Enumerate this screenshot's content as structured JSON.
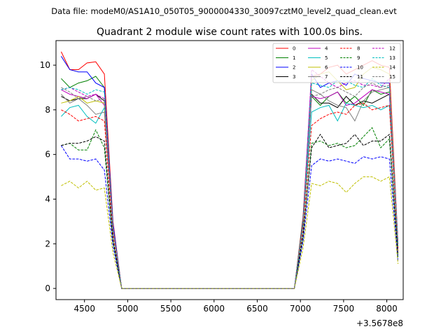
{
  "suptitle": "Data file: modeM0/AS1A10_050T05_9000004330_30097cztM0_level2_quad_clean.evt",
  "chart_data": {
    "type": "line",
    "title": "Quadrant 2 module wise count rates with 100.0s bins.",
    "xlabel": "",
    "ylabel": "",
    "x_offset_label": "+3.5678e8",
    "xlim": [
      4170,
      8190
    ],
    "ylim": [
      -0.5,
      11.1
    ],
    "xticks": [
      4500,
      5000,
      5500,
      6000,
      6500,
      7000,
      7500,
      8000
    ],
    "yticks": [
      0,
      2,
      4,
      6,
      8,
      10
    ],
    "grid": false,
    "legend_position": "top-right",
    "x": [
      4230,
      4330,
      4430,
      4530,
      4630,
      4730,
      4830,
      4930,
      5030,
      5130,
      5230,
      5330,
      5430,
      5530,
      5630,
      5730,
      5830,
      5930,
      6030,
      6130,
      6230,
      6330,
      6430,
      6530,
      6630,
      6730,
      6830,
      6930,
      7030,
      7130,
      7230,
      7330,
      7430,
      7530,
      7630,
      7730,
      7830,
      7930,
      8030,
      8130
    ],
    "series": [
      {
        "name": "0",
        "color": "#ff0000",
        "dash": "solid",
        "values": [
          10.6,
          9.8,
          9.8,
          10.1,
          10.15,
          9.6,
          3.0,
          0,
          0,
          0,
          0,
          0,
          0,
          0,
          0,
          0,
          0,
          0,
          0,
          0,
          0,
          0,
          0,
          0,
          0,
          0,
          0,
          0,
          3.2,
          9.5,
          9.6,
          9.9,
          10.0,
          9.6,
          9.8,
          10.0,
          10.2,
          10.0,
          9.9,
          2.0
        ]
      },
      {
        "name": "1",
        "color": "#008000",
        "dash": "solid",
        "values": [
          9.4,
          9.0,
          9.2,
          9.3,
          9.5,
          9.0,
          2.8,
          0,
          0,
          0,
          0,
          0,
          0,
          0,
          0,
          0,
          0,
          0,
          0,
          0,
          0,
          0,
          0,
          0,
          0,
          0,
          0,
          0,
          3.1,
          8.6,
          8.2,
          8.6,
          8.8,
          8.3,
          8.6,
          8.2,
          8.9,
          8.7,
          8.8,
          1.9
        ]
      },
      {
        "name": "2",
        "color": "#0000ff",
        "dash": "solid",
        "values": [
          10.4,
          9.8,
          9.7,
          9.7,
          9.2,
          9.0,
          2.9,
          0,
          0,
          0,
          0,
          0,
          0,
          0,
          0,
          0,
          0,
          0,
          0,
          0,
          0,
          0,
          0,
          0,
          0,
          0,
          0,
          0,
          3.0,
          9.6,
          9.0,
          9.2,
          9.3,
          9.1,
          9.6,
          9.4,
          9.3,
          9.2,
          9.2,
          2.0
        ]
      },
      {
        "name": "3",
        "color": "#000000",
        "dash": "solid",
        "values": [
          8.6,
          8.4,
          8.5,
          8.5,
          8.7,
          8.4,
          2.7,
          0,
          0,
          0,
          0,
          0,
          0,
          0,
          0,
          0,
          0,
          0,
          0,
          0,
          0,
          0,
          0,
          0,
          0,
          0,
          0,
          0,
          2.9,
          8.7,
          8.3,
          8.3,
          8.1,
          8.6,
          8.2,
          8.4,
          8.3,
          8.5,
          8.7,
          1.8
        ]
      },
      {
        "name": "4",
        "color": "#bf00bf",
        "dash": "solid",
        "values": [
          8.9,
          8.7,
          8.6,
          8.5,
          8.7,
          8.2,
          2.7,
          0,
          0,
          0,
          0,
          0,
          0,
          0,
          0,
          0,
          0,
          0,
          0,
          0,
          0,
          0,
          0,
          0,
          0,
          0,
          0,
          0,
          2.9,
          8.6,
          8.5,
          8.6,
          8.8,
          8.2,
          8.3,
          8.6,
          8.9,
          8.8,
          8.7,
          1.9
        ]
      },
      {
        "name": "5",
        "color": "#00bfbf",
        "dash": "solid",
        "values": [
          7.7,
          8.1,
          8.2,
          7.7,
          7.4,
          8.1,
          2.6,
          0,
          0,
          0,
          0,
          0,
          0,
          0,
          0,
          0,
          0,
          0,
          0,
          0,
          0,
          0,
          0,
          0,
          0,
          0,
          0,
          0,
          2.8,
          7.9,
          8.1,
          8.2,
          7.5,
          8.3,
          8.2,
          8.1,
          8.2,
          8.0,
          8.2,
          1.8
        ]
      },
      {
        "name": "6",
        "color": "#bfbf00",
        "dash": "solid",
        "values": [
          8.3,
          8.4,
          8.6,
          8.3,
          8.4,
          8.3,
          2.7,
          0,
          0,
          0,
          0,
          0,
          0,
          0,
          0,
          0,
          0,
          0,
          0,
          0,
          0,
          0,
          0,
          0,
          0,
          0,
          0,
          0,
          2.9,
          9.3,
          9.6,
          9.7,
          9.3,
          8.9,
          9.0,
          9.6,
          9.9,
          9.8,
          9.6,
          1.9
        ]
      },
      {
        "name": "7",
        "color": "#808080",
        "dash": "solid",
        "values": [
          8.7,
          8.3,
          8.5,
          8.2,
          7.8,
          7.9,
          2.6,
          0,
          0,
          0,
          0,
          0,
          0,
          0,
          0,
          0,
          0,
          0,
          0,
          0,
          0,
          0,
          0,
          0,
          0,
          0,
          0,
          0,
          2.9,
          8.9,
          8.7,
          8.4,
          8.2,
          8.1,
          7.5,
          8.4,
          8.8,
          8.9,
          9.0,
          1.8
        ]
      },
      {
        "name": "8",
        "color": "#ff0000",
        "dash": "dashed",
        "values": [
          8.0,
          7.8,
          7.5,
          7.6,
          7.7,
          7.5,
          2.5,
          0,
          0,
          0,
          0,
          0,
          0,
          0,
          0,
          0,
          0,
          0,
          0,
          0,
          0,
          0,
          0,
          0,
          0,
          0,
          0,
          0,
          2.7,
          7.3,
          7.6,
          7.8,
          7.9,
          7.8,
          8.2,
          8.3,
          8.0,
          8.1,
          8.2,
          1.7
        ]
      },
      {
        "name": "9",
        "color": "#008000",
        "dash": "dashed",
        "values": [
          6.4,
          6.5,
          6.2,
          6.2,
          7.1,
          6.3,
          2.1,
          0,
          0,
          0,
          0,
          0,
          0,
          0,
          0,
          0,
          0,
          0,
          0,
          0,
          0,
          0,
          0,
          0,
          0,
          0,
          0,
          0,
          2.3,
          6.5,
          6.6,
          6.4,
          6.5,
          6.3,
          6.4,
          6.8,
          7.2,
          6.3,
          6.7,
          1.4
        ]
      },
      {
        "name": "10",
        "color": "#0000ff",
        "dash": "dashed",
        "values": [
          6.4,
          5.8,
          5.8,
          5.7,
          5.8,
          5.3,
          1.9,
          0,
          0,
          0,
          0,
          0,
          0,
          0,
          0,
          0,
          0,
          0,
          0,
          0,
          0,
          0,
          0,
          0,
          0,
          0,
          0,
          0,
          2.1,
          5.5,
          5.8,
          5.7,
          5.8,
          5.7,
          5.6,
          5.9,
          5.8,
          5.9,
          5.8,
          1.2
        ]
      },
      {
        "name": "11",
        "color": "#000000",
        "dash": "dashed",
        "values": [
          6.4,
          6.5,
          6.5,
          6.6,
          6.8,
          6.6,
          2.2,
          0,
          0,
          0,
          0,
          0,
          0,
          0,
          0,
          0,
          0,
          0,
          0,
          0,
          0,
          0,
          0,
          0,
          0,
          0,
          0,
          0,
          2.4,
          6.3,
          6.9,
          6.3,
          6.4,
          6.5,
          6.9,
          6.4,
          6.6,
          6.6,
          6.9,
          1.5
        ]
      },
      {
        "name": "12",
        "color": "#bf00bf",
        "dash": "dashed",
        "values": [
          8.9,
          9.0,
          8.8,
          8.6,
          8.7,
          8.5,
          2.7,
          0,
          0,
          0,
          0,
          0,
          0,
          0,
          0,
          0,
          0,
          0,
          0,
          0,
          0,
          0,
          0,
          0,
          0,
          0,
          0,
          0,
          2.9,
          9.8,
          9.5,
          9.2,
          9.0,
          9.2,
          9.3,
          9.1,
          9.1,
          9.0,
          9.4,
          2.0
        ]
      },
      {
        "name": "13",
        "color": "#00bfbf",
        "dash": "dashed",
        "values": [
          8.9,
          9.0,
          8.9,
          8.7,
          8.9,
          8.8,
          2.7,
          0,
          0,
          0,
          0,
          0,
          0,
          0,
          0,
          0,
          0,
          0,
          0,
          0,
          0,
          0,
          0,
          0,
          0,
          0,
          0,
          0,
          2.9,
          9.2,
          9.1,
          9.0,
          9.3,
          9.3,
          9.1,
          9.0,
          9.4,
          9.1,
          9.0,
          1.9
        ]
      },
      {
        "name": "14",
        "color": "#bfbf00",
        "dash": "dashed",
        "values": [
          4.6,
          4.8,
          4.5,
          4.8,
          4.4,
          4.5,
          1.6,
          0,
          0,
          0,
          0,
          0,
          0,
          0,
          0,
          0,
          0,
          0,
          0,
          0,
          0,
          0,
          0,
          0,
          0,
          0,
          0,
          0,
          1.8,
          4.7,
          4.6,
          4.8,
          4.7,
          4.3,
          4.7,
          5.0,
          5.0,
          4.8,
          5.0,
          1.1
        ]
      },
      {
        "name": "15",
        "color": "#808080",
        "dash": "dashed",
        "values": [
          9.0,
          8.8,
          8.5,
          8.6,
          8.4,
          8.5,
          2.7,
          0,
          0,
          0,
          0,
          0,
          0,
          0,
          0,
          0,
          0,
          0,
          0,
          0,
          0,
          0,
          0,
          0,
          0,
          0,
          0,
          0,
          2.9,
          8.6,
          8.7,
          8.9,
          9.0,
          8.8,
          8.6,
          9.0,
          9.2,
          9.0,
          9.1,
          1.9
        ]
      }
    ]
  }
}
